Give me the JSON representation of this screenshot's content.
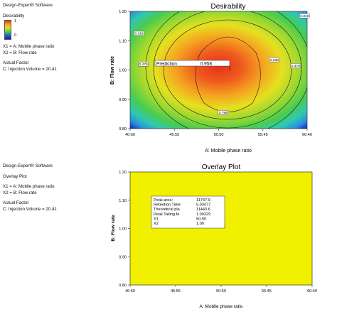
{
  "top_panel": {
    "software": "Design-Expert® Software",
    "legend_title": "Desirability",
    "legend_max": "1",
    "legend_min": "0",
    "x1_def": "X1 = A: Mobile phase ratio",
    "x2_def": "X2 = B: Flow rate",
    "actual_factor_label": "Actual Factor",
    "actual_factor_value": "C: Injection Volume = 20.41",
    "prediction_label": "Prediction",
    "prediction_value": "0.958"
  },
  "bottom_panel": {
    "software": "Design-Expert® Software",
    "subtitle": "Overlay Plot",
    "x1_def": "X1 = A: Mobile phase ratio",
    "x2_def": "X2 = B: Flow rate",
    "actual_factor_label": "Actual Factor",
    "actual_factor_value": "C: Injection Volume = 20.41",
    "fill_color": "#f0f000",
    "flag_rows": [
      {
        "label": "Peak area:",
        "value": "11747.9"
      },
      {
        "label": "Retention Time:",
        "value": "5.03477"
      },
      {
        "label": "Theoretical pla",
        "value": "11443.6"
      },
      {
        "label": "Peak Tailing fa",
        "value": "1.00329"
      },
      {
        "label": "X1",
        "value": "50.50"
      },
      {
        "label": "X2",
        "value": "1.00"
      }
    ]
  },
  "chart_data": [
    {
      "type": "heatmap",
      "title": "Desirability",
      "xlabel": "A: Mobile phase ratio",
      "ylabel": "B: Flow rate",
      "x_ticks": [
        "40:60",
        "45:55",
        "50:50",
        "55:45",
        "60:40"
      ],
      "y_ticks": [
        "0.80",
        "0.90",
        "1.00",
        "1.10",
        "1.20"
      ],
      "ylim": [
        0.8,
        1.2
      ],
      "contour_labels": [
        {
          "text": "0.319",
          "x": 41.0,
          "y": 1.125
        },
        {
          "text": "0.319",
          "x": 59.7,
          "y": 1.185
        },
        {
          "text": "0.479",
          "x": 41.5,
          "y": 1.02
        },
        {
          "text": "0.639",
          "x": 56.3,
          "y": 1.035
        },
        {
          "text": "0.479",
          "x": 58.7,
          "y": 1.015
        },
        {
          "text": "0.798",
          "x": 50.5,
          "y": 0.855
        }
      ],
      "prediction_point": {
        "x": 50.5,
        "y": 1.0,
        "value": 0.958
      },
      "colors": {
        "high": "#e8301c",
        "mid": "#e0e020",
        "low": "#1c1ca0",
        "contour": "#1a1a1a"
      }
    },
    {
      "type": "heatmap",
      "title": "Overlay Plot",
      "xlabel": "A: Mobile phase ratio",
      "ylabel": "B: Flow rate",
      "x_ticks": [
        "40:60",
        "45:55",
        "50:50",
        "55:45",
        "60:40"
      ],
      "y_ticks": [
        "0.80",
        "0.90",
        "1.00",
        "1.10",
        "1.20"
      ],
      "ylim": [
        0.8,
        1.2
      ],
      "flag_point": {
        "x": 50.5,
        "y": 1.0
      }
    }
  ]
}
